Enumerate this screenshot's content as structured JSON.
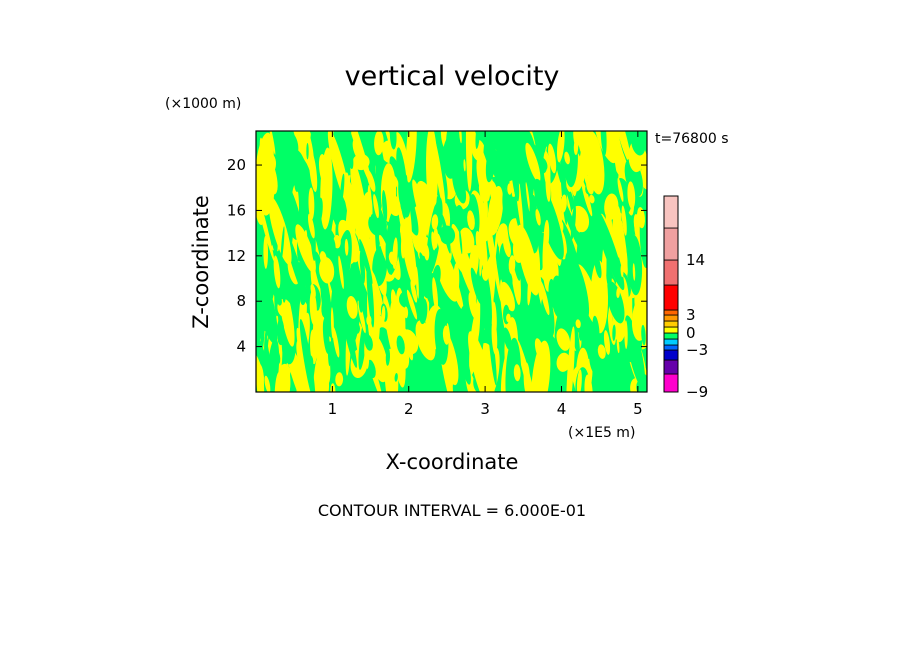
{
  "chart_data": {
    "type": "heatmap",
    "title": "vertical velocity",
    "xlabel": "X-coordinate",
    "ylabel": "Z-coordinate",
    "x_unit": "(×1E5 m)",
    "y_unit": "(×1000 m)",
    "time_label": "t=76800 s",
    "footer": "CONTOUR INTERVAL = 6.000E-01",
    "xlim": [
      0,
      5.12
    ],
    "ylim": [
      0,
      23
    ],
    "x_ticks": [
      1,
      2,
      3,
      4,
      5
    ],
    "y_ticks": [
      4,
      8,
      12,
      16,
      20
    ],
    "dominant_colors": {
      "positive": "#ffff00",
      "negative": "#00ff66"
    },
    "colorbar": {
      "labels": [
        "14",
        "3",
        "0",
        "−3",
        "−9"
      ],
      "label_values": [
        14,
        3,
        0,
        -3,
        -9
      ],
      "bands": [
        {
          "from": -9,
          "to": -7,
          "color": "#ff00cc"
        },
        {
          "from": -7,
          "to": -5,
          "color": "#6600aa"
        },
        {
          "from": -5,
          "to": -3,
          "color": "#0000cc"
        },
        {
          "from": -3,
          "to": -2,
          "color": "#0066ff"
        },
        {
          "from": -2,
          "to": -1,
          "color": "#00ccff"
        },
        {
          "from": -1,
          "to": 0,
          "color": "#00ff66"
        },
        {
          "from": 0,
          "to": 1,
          "color": "#ffff00"
        },
        {
          "from": 1,
          "to": 2,
          "color": "#ffcc00"
        },
        {
          "from": 2,
          "to": 3,
          "color": "#ff9900"
        },
        {
          "from": 3,
          "to": 4,
          "color": "#ff6600"
        },
        {
          "from": 4,
          "to": 7,
          "color": "#ff0000"
        },
        {
          "from": 7,
          "to": 14,
          "color": "#f07070"
        },
        {
          "from": 14,
          "to": 17,
          "color": "#f0a0a0"
        },
        {
          "from": 17,
          "to": 20,
          "color": "#f8c4c0"
        }
      ]
    }
  }
}
